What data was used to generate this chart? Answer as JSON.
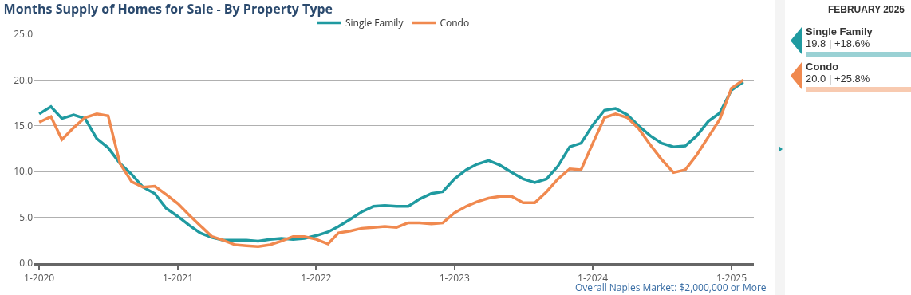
{
  "chart_data": {
    "type": "line",
    "title": "Months Supply of Homes for Sale - By Property Type",
    "x": [
      "2020-01",
      "2020-02",
      "2020-03",
      "2020-04",
      "2020-05",
      "2020-06",
      "2020-07",
      "2020-08",
      "2020-09",
      "2020-10",
      "2020-11",
      "2020-12",
      "2021-01",
      "2021-02",
      "2021-03",
      "2021-04",
      "2021-05",
      "2021-06",
      "2021-07",
      "2021-08",
      "2021-09",
      "2021-10",
      "2021-11",
      "2021-12",
      "2022-01",
      "2022-02",
      "2022-03",
      "2022-04",
      "2022-05",
      "2022-06",
      "2022-07",
      "2022-08",
      "2022-09",
      "2022-10",
      "2022-11",
      "2022-12",
      "2023-01",
      "2023-02",
      "2023-03",
      "2023-04",
      "2023-05",
      "2023-06",
      "2023-07",
      "2023-08",
      "2023-09",
      "2023-10",
      "2023-11",
      "2023-12",
      "2024-01",
      "2024-02",
      "2024-03",
      "2024-04",
      "2024-05",
      "2024-06",
      "2024-07",
      "2024-08",
      "2024-09",
      "2024-10",
      "2024-11",
      "2024-12",
      "2025-01",
      "2025-02"
    ],
    "series": [
      {
        "name": "Single Family",
        "color": "#1f9aa0",
        "values": [
          16.3,
          17.1,
          15.8,
          16.2,
          15.8,
          13.6,
          12.6,
          10.9,
          9.7,
          8.3,
          7.6,
          6.0,
          5.1,
          4.1,
          3.3,
          2.8,
          2.5,
          2.5,
          2.5,
          2.4,
          2.6,
          2.7,
          2.6,
          2.7,
          3.0,
          3.4,
          4.0,
          4.8,
          5.6,
          6.2,
          6.3,
          6.2,
          6.2,
          7.0,
          7.6,
          7.8,
          9.2,
          10.2,
          10.8,
          11.2,
          10.7,
          9.9,
          9.2,
          8.8,
          9.2,
          10.6,
          12.7,
          13.1,
          15.1,
          16.7,
          16.9,
          16.2,
          15.0,
          13.9,
          13.1,
          12.7,
          12.8,
          13.9,
          15.5,
          16.4,
          18.9,
          19.8
        ]
      },
      {
        "name": "Condo",
        "color": "#f0894f",
        "values": [
          15.4,
          16.0,
          13.5,
          14.8,
          15.9,
          16.3,
          16.1,
          10.9,
          8.9,
          8.3,
          8.4,
          7.5,
          6.5,
          5.2,
          4.1,
          2.9,
          2.5,
          2.0,
          1.9,
          1.8,
          2.0,
          2.4,
          2.9,
          2.9,
          2.6,
          2.1,
          3.3,
          3.5,
          3.8,
          3.9,
          4.0,
          3.9,
          4.4,
          4.4,
          4.3,
          4.4,
          5.5,
          6.2,
          6.7,
          7.1,
          7.3,
          7.3,
          6.6,
          6.6,
          7.8,
          9.2,
          10.3,
          10.2,
          13.1,
          15.9,
          16.3,
          15.9,
          14.7,
          12.9,
          11.3,
          9.9,
          10.2,
          11.8,
          13.8,
          15.7,
          19.1,
          20.0
        ]
      }
    ],
    "xlim": [
      "2019-12-17",
      "2025-03-01"
    ],
    "xticks": [
      {
        "value": "2020-01",
        "label": "1-2020"
      },
      {
        "value": "2021-01",
        "label": "1-2021"
      },
      {
        "value": "2022-01",
        "label": "1-2022"
      },
      {
        "value": "2023-01",
        "label": "1-2023"
      },
      {
        "value": "2024-01",
        "label": "1-2024"
      },
      {
        "value": "2025-01",
        "label": "1-2025"
      }
    ],
    "ylim": [
      0,
      25
    ],
    "yticks": [
      {
        "value": 0,
        "label": "0.0"
      },
      {
        "value": 5,
        "label": "5.0"
      },
      {
        "value": 10,
        "label": "10.0"
      },
      {
        "value": 15,
        "label": "15.0"
      },
      {
        "value": 20,
        "label": "20.0"
      },
      {
        "value": 25,
        "label": "25.0"
      }
    ],
    "grid": "y",
    "legend": "top",
    "marker": "none",
    "line_style": "solid",
    "annotations": [
      "Overall Naples Market: $2,000,000 or More",
      "FEBRUARY 2025",
      "19.8 | +18.6%",
      "20.0 | +25.8%"
    ]
  }
}
